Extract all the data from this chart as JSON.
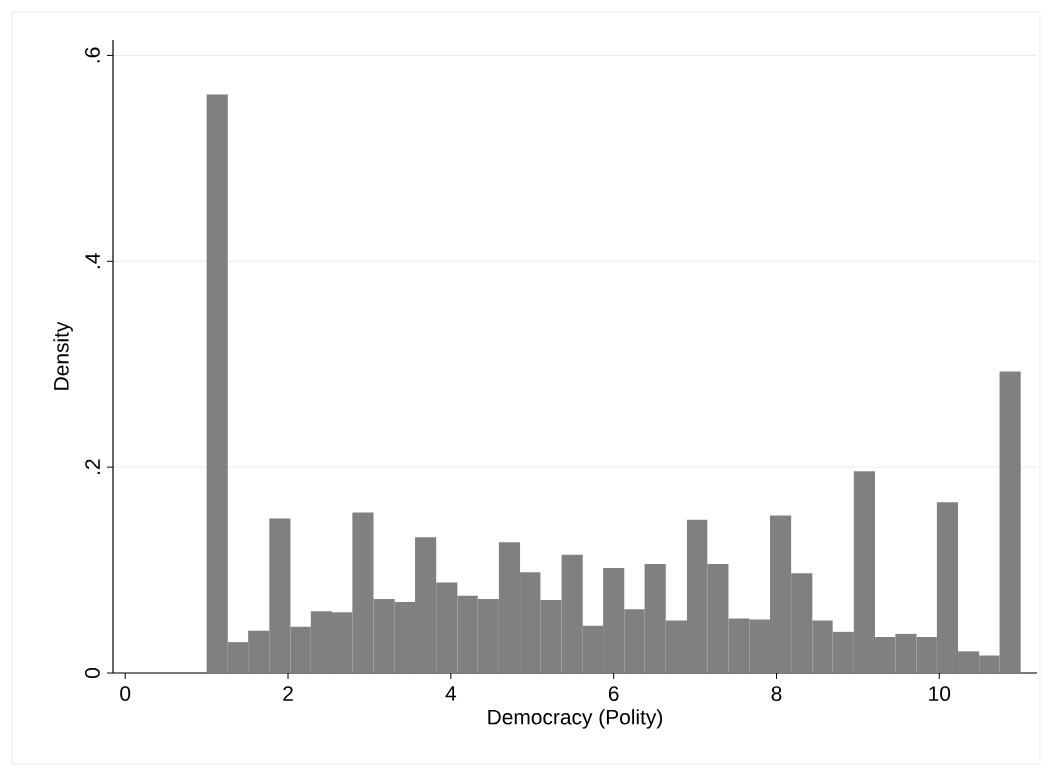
{
  "chart_data": {
    "type": "histogram",
    "xlabel": "Democracy (Polity)",
    "ylabel": "Density",
    "color": "#808080",
    "bins": [
      1,
      1.26,
      1.51,
      1.77,
      2.03,
      2.28,
      2.54,
      2.79,
      3.05,
      3.31,
      3.56,
      3.82,
      4.08,
      4.33,
      4.59,
      4.85,
      5.1,
      5.36,
      5.62,
      5.87,
      6.13,
      6.38,
      6.64,
      6.9,
      7.15,
      7.41,
      7.67,
      7.92,
      8.18,
      8.44,
      8.69,
      8.95,
      9.21,
      9.46,
      9.72,
      9.97,
      10.23,
      10.49,
      10.74,
      11
    ],
    "values": [
      0.562,
      0.03,
      0.041,
      0.15,
      0.045,
      0.06,
      0.059,
      0.156,
      0.072,
      0.069,
      0.132,
      0.088,
      0.075,
      0.072,
      0.127,
      0.098,
      0.071,
      0.115,
      0.046,
      0.102,
      0.062,
      0.106,
      0.051,
      0.149,
      0.106,
      0.053,
      0.052,
      0.153,
      0.097,
      0.051,
      0.04,
      0.196,
      0.035,
      0.038,
      0.035,
      0.166,
      0.021,
      0.017,
      0.293
    ],
    "xlim": [
      -0.15,
      11.2
    ],
    "ylim": [
      0,
      0.615
    ],
    "xticks": [
      0,
      2,
      4,
      6,
      8,
      10
    ],
    "yticks": [
      0,
      {
        "value": 0.2,
        "label": ".2"
      },
      {
        "value": 0.4,
        "label": ".4"
      },
      {
        "value": 0.6,
        "label": ".6"
      }
    ],
    "grid": "y"
  }
}
